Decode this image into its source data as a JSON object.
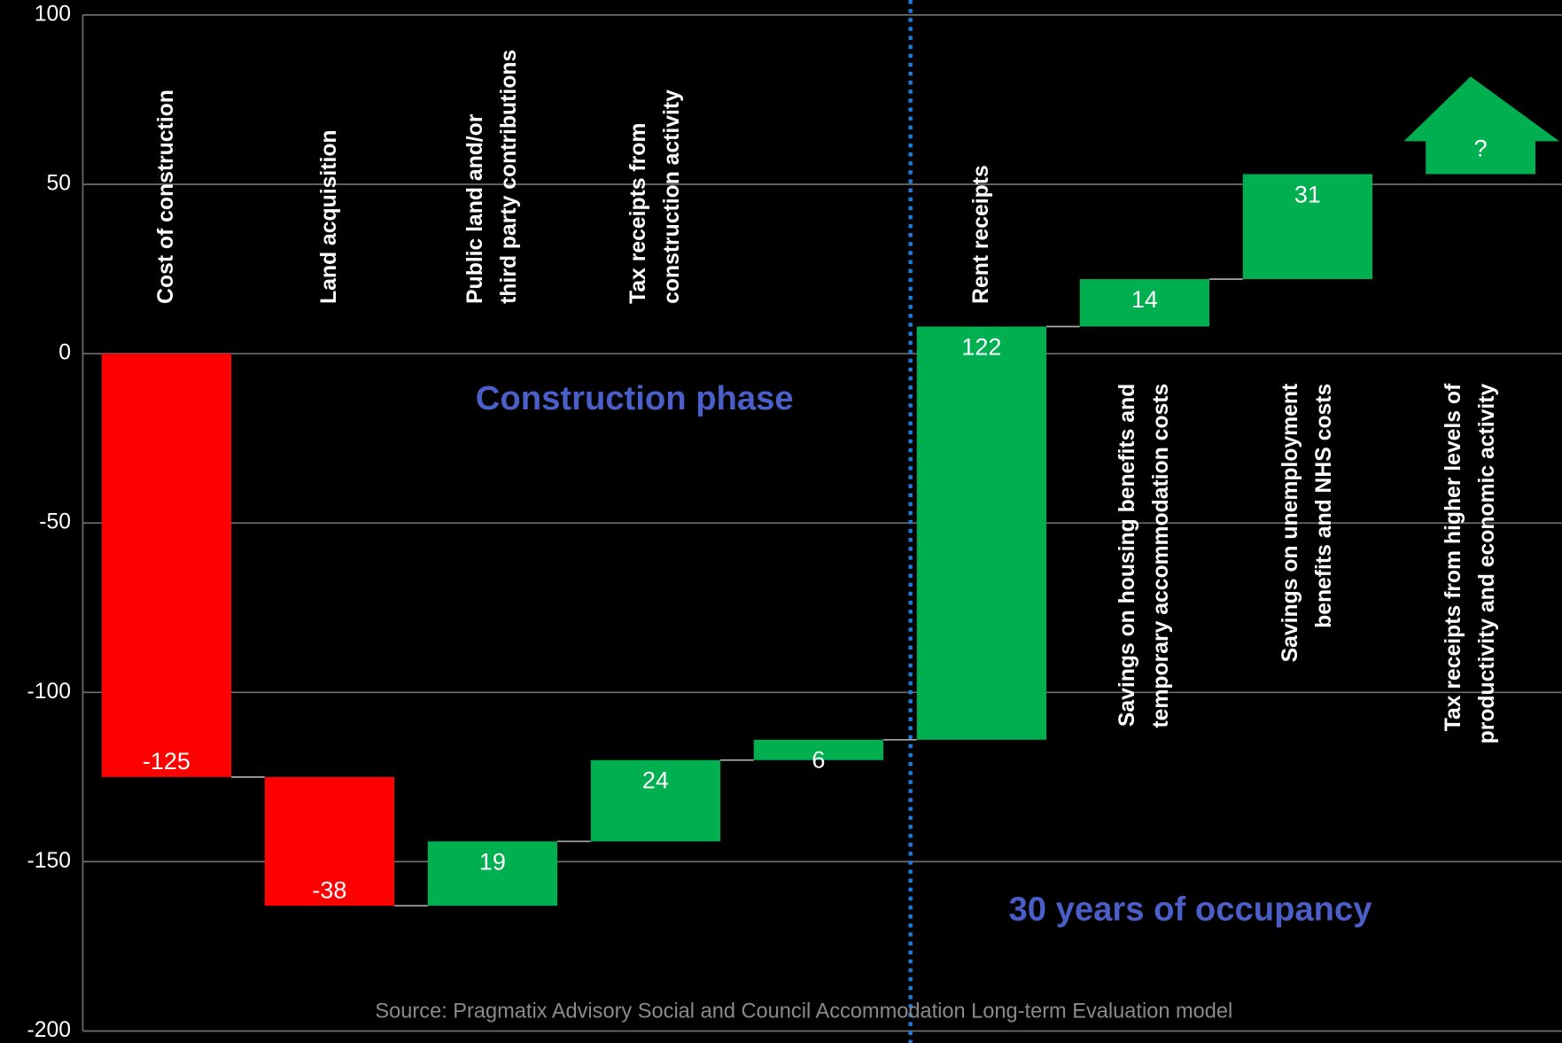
{
  "chart_data": {
    "type": "waterfall",
    "categories": [
      [
        "Cost of construction"
      ],
      [
        "Land acquisition"
      ],
      [
        "Public land and/or",
        "third party contributions"
      ],
      [
        "Tax receipts from",
        "construction activity"
      ],
      null,
      [
        "Rent receipts"
      ],
      [
        "Savings on housing benefits and",
        "temporary accommodation costs"
      ],
      [
        "Savings on unemployment",
        "benefits and NHS costs"
      ],
      [
        "Tax receipts from higher levels of",
        "productivity and economic activity"
      ]
    ],
    "values": [
      -125,
      -38,
      19,
      24,
      6,
      122,
      14,
      31,
      null
    ],
    "value_labels": [
      "-125",
      "-38",
      "19",
      "24",
      "6",
      "122",
      "14",
      "31",
      "?"
    ],
    "colors": {
      "negative": "#ff0000",
      "positive": "#00b050"
    },
    "ylim": [
      -200,
      100
    ],
    "yticks": [
      100,
      50,
      0,
      -50,
      -100,
      -150,
      -200
    ],
    "grid": true,
    "annotations": {
      "construction": "Construction phase",
      "occupancy": "30 years of occupancy",
      "source": "Source: Pragmatix Advisory Social and Council Accommodation Long-term Evaluation model"
    }
  }
}
